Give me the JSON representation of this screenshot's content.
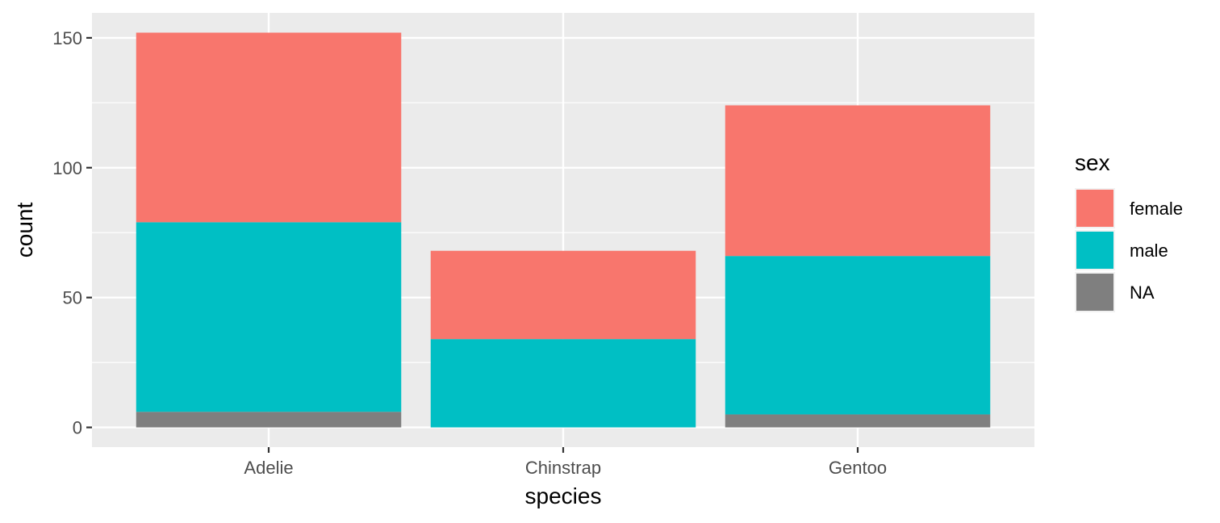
{
  "chart_data": {
    "type": "bar",
    "stacked": true,
    "title": "",
    "xlabel": "species",
    "ylabel": "count",
    "categories": [
      "Adelie",
      "Chinstrap",
      "Gentoo"
    ],
    "series": [
      {
        "name": "female",
        "color": "#F8766D",
        "values": [
          73,
          34,
          58
        ]
      },
      {
        "name": "male",
        "color": "#00BFC4",
        "values": [
          73,
          34,
          61
        ]
      },
      {
        "name": "NA",
        "color": "#7F7F7F",
        "values": [
          6,
          0,
          5
        ]
      }
    ],
    "stack_order_bottom_to_top": [
      "NA",
      "male",
      "female"
    ],
    "ylim": [
      -7.6,
      159.6
    ],
    "yticks": [
      0,
      50,
      100,
      150
    ],
    "grid": true,
    "legend": {
      "title": "sex",
      "position": "right"
    },
    "colors": {
      "panel": "#EBEBEB",
      "grid": "#FFFFFF"
    }
  }
}
